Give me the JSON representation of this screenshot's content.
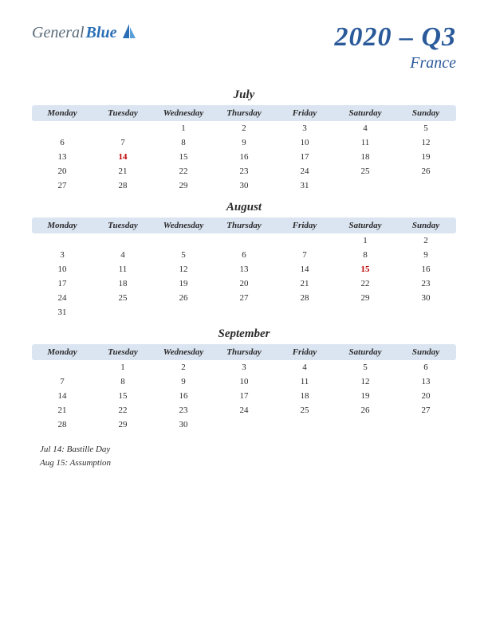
{
  "logo": {
    "part1": "General",
    "part2": "Blue"
  },
  "title": "2020 – Q3",
  "subtitle": "France",
  "colors": {
    "header_bg": "#dbe5f1",
    "title_color": "#2a5a9a",
    "text_color": "#2a2a2a",
    "holiday_color": "#c00000",
    "logo_gray": "#5a6b7a",
    "logo_blue": "#2a6fb5"
  },
  "day_names": [
    "Monday",
    "Tuesday",
    "Wednesday",
    "Thursday",
    "Friday",
    "Saturday",
    "Sunday"
  ],
  "months": [
    {
      "name": "July",
      "weeks": [
        [
          "",
          "",
          "1",
          "2",
          "3",
          "4",
          "5"
        ],
        [
          "6",
          "7",
          "8",
          "9",
          "10",
          "11",
          "12"
        ],
        [
          "13",
          "14",
          "15",
          "16",
          "17",
          "18",
          "19"
        ],
        [
          "20",
          "21",
          "22",
          "23",
          "24",
          "25",
          "26"
        ],
        [
          "27",
          "28",
          "29",
          "30",
          "31",
          "",
          ""
        ]
      ],
      "holidays": [
        "14"
      ]
    },
    {
      "name": "August",
      "weeks": [
        [
          "",
          "",
          "",
          "",
          "",
          "1",
          "2"
        ],
        [
          "3",
          "4",
          "5",
          "6",
          "7",
          "8",
          "9"
        ],
        [
          "10",
          "11",
          "12",
          "13",
          "14",
          "15",
          "16"
        ],
        [
          "17",
          "18",
          "19",
          "20",
          "21",
          "22",
          "23"
        ],
        [
          "24",
          "25",
          "26",
          "27",
          "28",
          "29",
          "30"
        ],
        [
          "31",
          "",
          "",
          "",
          "",
          "",
          ""
        ]
      ],
      "holidays": [
        "15"
      ]
    },
    {
      "name": "September",
      "weeks": [
        [
          "",
          "1",
          "2",
          "3",
          "4",
          "5",
          "6"
        ],
        [
          "7",
          "8",
          "9",
          "10",
          "11",
          "12",
          "13"
        ],
        [
          "14",
          "15",
          "16",
          "17",
          "18",
          "19",
          "20"
        ],
        [
          "21",
          "22",
          "23",
          "24",
          "25",
          "26",
          "27"
        ],
        [
          "28",
          "29",
          "30",
          "",
          "",
          "",
          ""
        ]
      ],
      "holidays": []
    }
  ],
  "notes": [
    "Jul 14: Bastille Day",
    "Aug 15: Assumption"
  ]
}
